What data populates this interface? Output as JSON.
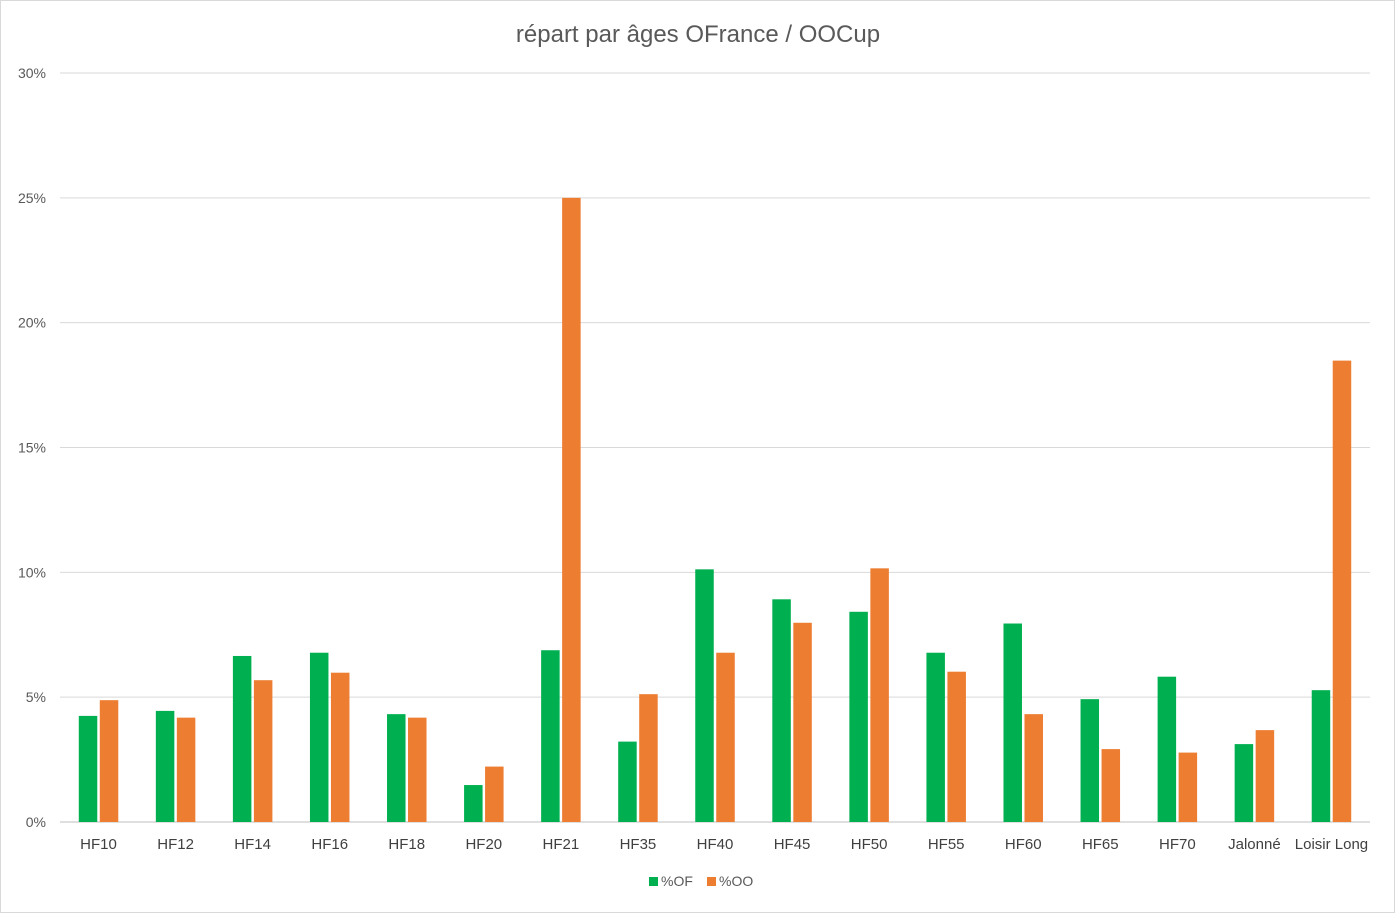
{
  "chart_data": {
    "type": "bar",
    "title": "répart par âges OFrance / OOCup",
    "xlabel": "",
    "ylabel": "",
    "ylim": [
      0,
      0.3
    ],
    "yticks": [
      "0%",
      "5%",
      "10%",
      "15%",
      "20%",
      "25%",
      "30%"
    ],
    "grid": true,
    "legend_position": "bottom",
    "categories": [
      "HF10",
      "HF12",
      "HF14",
      "HF16",
      "HF18",
      "HF20",
      "HF21",
      "HF35",
      "HF40",
      "HF45",
      "HF50",
      "HF55",
      "HF60",
      "HF65",
      "HF70",
      "Jalonné",
      "Loisir Long"
    ],
    "series": [
      {
        "name": "%OF",
        "color": "#00b050",
        "values": [
          0.0425,
          0.0445,
          0.0665,
          0.0678,
          0.0432,
          0.0148,
          0.0688,
          0.0322,
          0.1012,
          0.0892,
          0.0842,
          0.0678,
          0.0795,
          0.0492,
          0.0582,
          0.0312,
          0.0528
        ]
      },
      {
        "name": "%OO",
        "color": "#ed7d31",
        "values": [
          0.0488,
          0.0418,
          0.0568,
          0.0598,
          0.0418,
          0.0222,
          0.25,
          0.0512,
          0.0678,
          0.0798,
          0.1016,
          0.0602,
          0.0432,
          0.0292,
          0.0278,
          0.0368,
          0.1848
        ]
      }
    ]
  }
}
